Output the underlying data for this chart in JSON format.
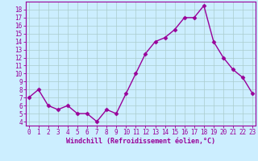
{
  "x": [
    0,
    1,
    2,
    3,
    4,
    5,
    6,
    7,
    8,
    9,
    10,
    11,
    12,
    13,
    14,
    15,
    16,
    17,
    18,
    19,
    20,
    21,
    22,
    23
  ],
  "y": [
    7.0,
    8.0,
    6.0,
    5.5,
    6.0,
    5.0,
    5.0,
    4.0,
    5.5,
    5.0,
    7.5,
    10.0,
    12.5,
    14.0,
    14.5,
    15.5,
    17.0,
    17.0,
    18.5,
    14.0,
    12.0,
    10.5,
    9.5,
    7.5
  ],
  "line_color": "#990099",
  "marker": "D",
  "marker_size": 2.5,
  "line_width": 1.0,
  "bg_color": "#cceeff",
  "grid_color": "#aacccc",
  "xlabel": "Windchill (Refroidissement éolien,°C)",
  "tick_color": "#990099",
  "ylim": [
    3.5,
    19.0
  ],
  "yticks": [
    4,
    5,
    6,
    7,
    8,
    9,
    10,
    11,
    12,
    13,
    14,
    15,
    16,
    17,
    18
  ],
  "xticks": [
    0,
    1,
    2,
    3,
    4,
    5,
    6,
    7,
    8,
    9,
    10,
    11,
    12,
    13,
    14,
    15,
    16,
    17,
    18,
    19,
    20,
    21,
    22,
    23
  ],
  "xlim": [
    -0.3,
    23.3
  ],
  "spine_color": "#990099"
}
